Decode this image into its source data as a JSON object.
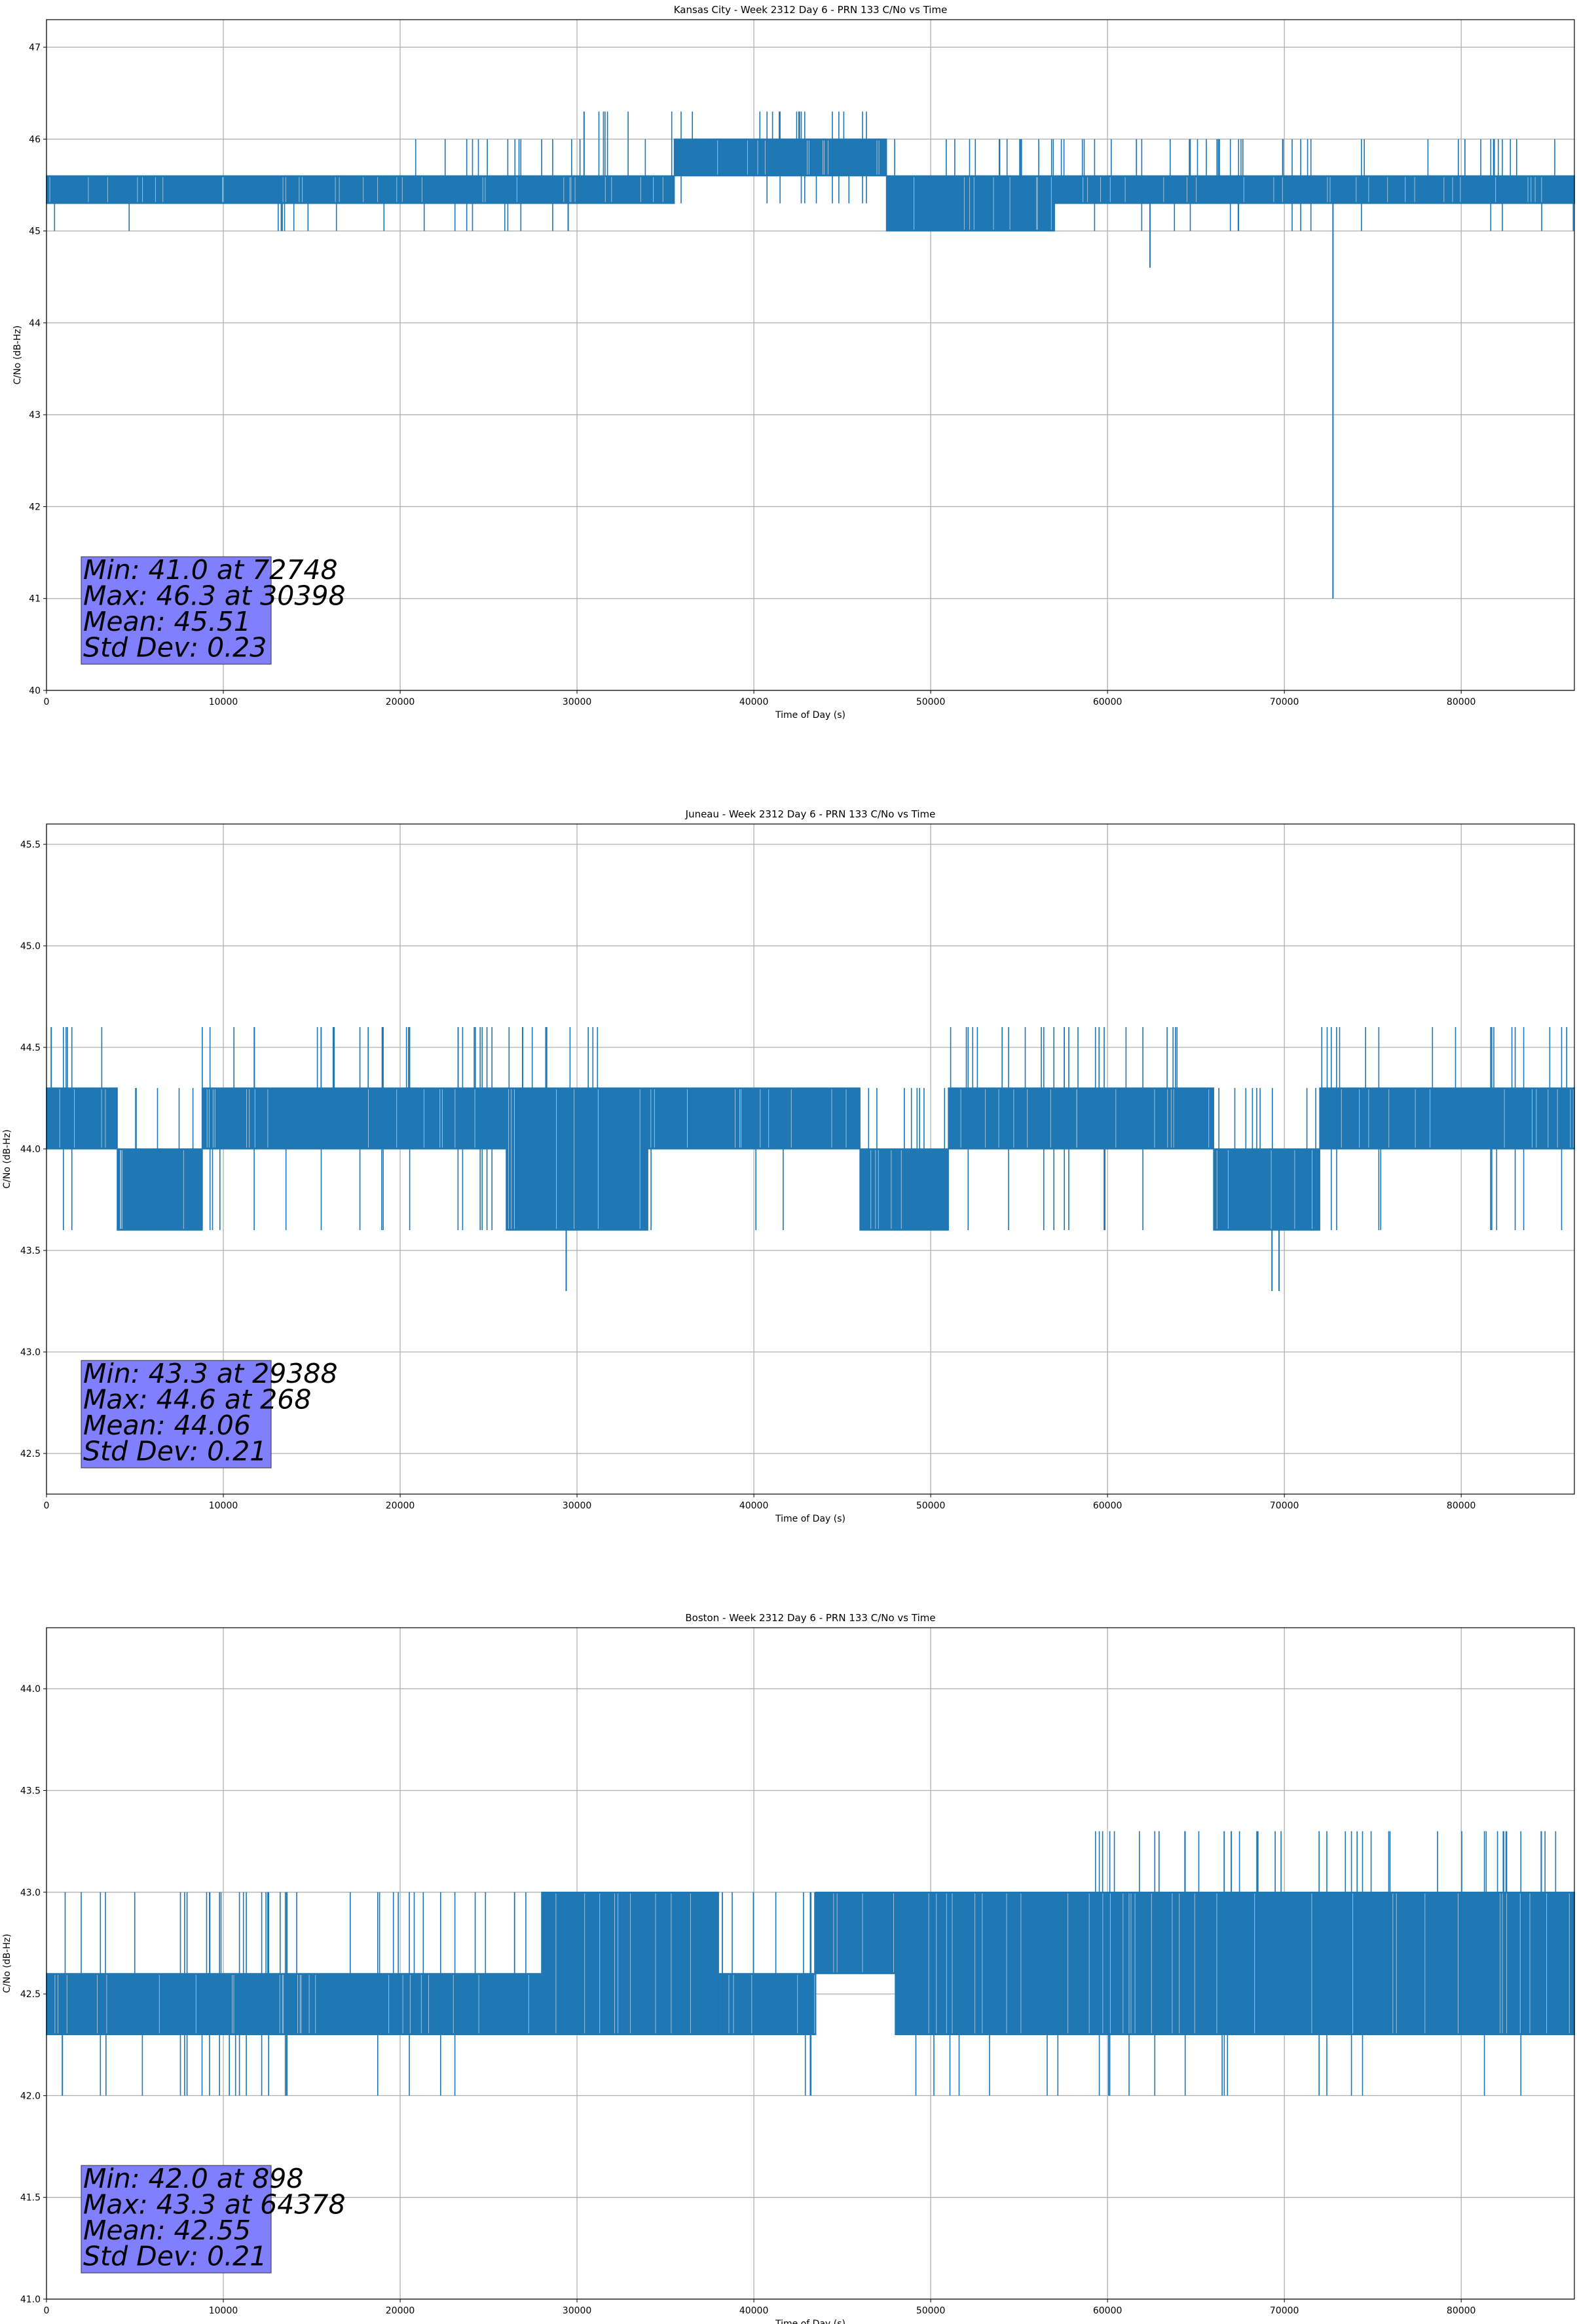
{
  "colors": {
    "series": "#1f77b4",
    "grid": "#b0b0b0",
    "stats_box": "#8080ff",
    "axis": "#000000"
  },
  "chart_data": [
    {
      "type": "line",
      "title": "Kansas City - Week 2312 Day 6 - PRN 133 C/No vs Time",
      "xlabel": "Time of Day (s)",
      "ylabel": "C/No (dB-Hz)",
      "xlim": [
        0,
        86400
      ],
      "ylim": [
        40,
        47.3
      ],
      "xticks": [
        0,
        10000,
        20000,
        30000,
        40000,
        50000,
        60000,
        70000,
        80000
      ],
      "xtick_labels": [
        "0",
        "10000",
        "20000",
        "30000",
        "40000",
        "50000",
        "60000",
        "70000",
        "80000"
      ],
      "yticks": [
        40,
        41,
        42,
        43,
        44,
        45,
        46,
        47
      ],
      "ytick_labels": [
        "40",
        "41",
        "42",
        "43",
        "44",
        "45",
        "46",
        "47"
      ],
      "grid": true,
      "series": [
        {
          "values_by_interval": [
            {
              "x0": 0,
              "x1": 20000,
              "lo": 45.3,
              "hi": 45.6,
              "spikes_down": [
                45.0
              ],
              "spikes_up": []
            },
            {
              "x0": 20000,
              "x1": 30000,
              "lo": 45.3,
              "hi": 45.6,
              "spikes_down": [
                45.0
              ],
              "spikes_up": [
                46.0
              ]
            },
            {
              "x0": 30000,
              "x1": 35500,
              "lo": 45.3,
              "hi": 45.6,
              "spikes_down": [],
              "spikes_up": [
                46.0,
                46.3
              ]
            },
            {
              "x0": 35500,
              "x1": 47500,
              "lo": 45.6,
              "hi": 46.0,
              "spikes_down": [
                45.3
              ],
              "spikes_up": [
                46.3
              ]
            },
            {
              "x0": 47500,
              "x1": 57000,
              "lo": 45.0,
              "hi": 45.6,
              "spikes_down": [],
              "spikes_up": [
                46.0
              ]
            },
            {
              "x0": 57000,
              "x1": 86400,
              "lo": 45.3,
              "hi": 45.6,
              "spikes_down": [
                45.0
              ],
              "spikes_up": [
                46.0
              ]
            }
          ],
          "outliers": [
            {
              "x": 72748,
              "y": 41.0
            },
            {
              "x": 62400,
              "y": 44.6
            },
            {
              "x": 30398,
              "y": 46.3
            },
            {
              "x": 29500,
              "y": 45.0
            }
          ]
        }
      ],
      "stats": [
        "Min: 41.0 at 72748",
        "Max: 46.3 at 30398",
        "Mean: 45.51",
        "Std Dev: 0.23"
      ]
    },
    {
      "type": "line",
      "title": "Juneau - Week 2312 Day 6 - PRN 133 C/No vs Time",
      "xlabel": "Time of Day (s)",
      "ylabel": "C/No (dB-Hz)",
      "xlim": [
        0,
        86400
      ],
      "ylim": [
        42.3,
        45.6
      ],
      "xticks": [
        0,
        10000,
        20000,
        30000,
        40000,
        50000,
        60000,
        70000,
        80000
      ],
      "xtick_labels": [
        "0",
        "10000",
        "20000",
        "30000",
        "40000",
        "50000",
        "60000",
        "70000",
        "80000"
      ],
      "yticks": [
        42.5,
        43.0,
        43.5,
        44.0,
        44.5,
        45.0,
        45.5
      ],
      "ytick_labels": [
        "42.5",
        "43.0",
        "43.5",
        "44.0",
        "44.5",
        "45.0",
        "45.5"
      ],
      "grid": true,
      "series": [
        {
          "values_by_interval": [
            {
              "x0": 0,
              "x1": 4000,
              "lo": 44.0,
              "hi": 44.3,
              "spikes_down": [
                43.6
              ],
              "spikes_up": [
                44.6
              ]
            },
            {
              "x0": 4000,
              "x1": 8800,
              "lo": 43.6,
              "hi": 44.0,
              "spikes_down": [],
              "spikes_up": [
                44.3
              ]
            },
            {
              "x0": 8800,
              "x1": 26000,
              "lo": 44.0,
              "hi": 44.3,
              "spikes_down": [
                43.6
              ],
              "spikes_up": [
                44.6
              ]
            },
            {
              "x0": 26000,
              "x1": 34000,
              "lo": 43.6,
              "hi": 44.3,
              "spikes_down": [],
              "spikes_up": [
                44.6
              ]
            },
            {
              "x0": 34000,
              "x1": 46000,
              "lo": 44.0,
              "hi": 44.3,
              "spikes_down": [
                43.6
              ],
              "spikes_up": []
            },
            {
              "x0": 46000,
              "x1": 51000,
              "lo": 43.6,
              "hi": 44.0,
              "spikes_down": [],
              "spikes_up": [
                44.3
              ]
            },
            {
              "x0": 51000,
              "x1": 66000,
              "lo": 44.0,
              "hi": 44.3,
              "spikes_down": [
                43.6
              ],
              "spikes_up": [
                44.6
              ]
            },
            {
              "x0": 66000,
              "x1": 72000,
              "lo": 43.6,
              "hi": 44.0,
              "spikes_down": [],
              "spikes_up": [
                44.3
              ]
            },
            {
              "x0": 72000,
              "x1": 86400,
              "lo": 44.0,
              "hi": 44.3,
              "spikes_down": [
                43.6
              ],
              "spikes_up": [
                44.6
              ]
            }
          ],
          "outliers": [
            {
              "x": 29388,
              "y": 43.3
            },
            {
              "x": 268,
              "y": 44.6
            },
            {
              "x": 69300,
              "y": 43.3
            },
            {
              "x": 69700,
              "y": 43.3
            }
          ]
        }
      ],
      "stats": [
        "Min: 43.3 at 29388",
        "Max: 44.6 at 268",
        "Mean: 44.06",
        "Std Dev: 0.21"
      ]
    },
    {
      "type": "line",
      "title": "Boston - Week 2312 Day 6 - PRN 133 C/No vs Time",
      "xlabel": "Time of Day (s)",
      "ylabel": "C/No (dB-Hz)",
      "xlim": [
        0,
        86400
      ],
      "ylim": [
        41.0,
        44.3
      ],
      "xticks": [
        0,
        10000,
        20000,
        30000,
        40000,
        50000,
        60000,
        70000,
        80000
      ],
      "xtick_labels": [
        "0",
        "10000",
        "20000",
        "30000",
        "40000",
        "50000",
        "60000",
        "70000",
        "80000"
      ],
      "yticks": [
        41.0,
        41.5,
        42.0,
        42.5,
        43.0,
        43.5,
        44.0
      ],
      "ytick_labels": [
        "41.0",
        "41.5",
        "42.0",
        "42.5",
        "43.0",
        "43.5",
        "44.0"
      ],
      "grid": true,
      "series": [
        {
          "values_by_interval": [
            {
              "x0": 0,
              "x1": 28000,
              "lo": 42.3,
              "hi": 42.6,
              "spikes_down": [
                42.0
              ],
              "spikes_up": [
                43.0
              ]
            },
            {
              "x0": 28000,
              "x1": 38000,
              "lo": 42.3,
              "hi": 43.0,
              "spikes_down": [],
              "spikes_up": []
            },
            {
              "x0": 38000,
              "x1": 43500,
              "lo": 42.3,
              "hi": 42.6,
              "spikes_down": [
                42.0
              ],
              "spikes_up": [
                43.0
              ]
            },
            {
              "x0": 43500,
              "x1": 48000,
              "lo": 42.6,
              "hi": 43.0,
              "spikes_down": [],
              "spikes_up": []
            },
            {
              "x0": 48000,
              "x1": 59000,
              "lo": 42.3,
              "hi": 43.0,
              "spikes_down": [
                42.0
              ],
              "spikes_up": []
            },
            {
              "x0": 59000,
              "x1": 86400,
              "lo": 42.3,
              "hi": 43.0,
              "spikes_down": [
                42.0
              ],
              "spikes_up": [
                43.3
              ]
            }
          ],
          "outliers": [
            {
              "x": 898,
              "y": 42.0
            },
            {
              "x": 64378,
              "y": 43.3
            },
            {
              "x": 67000,
              "y": 43.3
            },
            {
              "x": 68500,
              "y": 43.3
            }
          ]
        }
      ],
      "stats": [
        "Min: 42.0 at 898",
        "Max: 43.3 at 64378",
        "Mean: 42.55",
        "Std Dev: 0.21"
      ]
    }
  ]
}
